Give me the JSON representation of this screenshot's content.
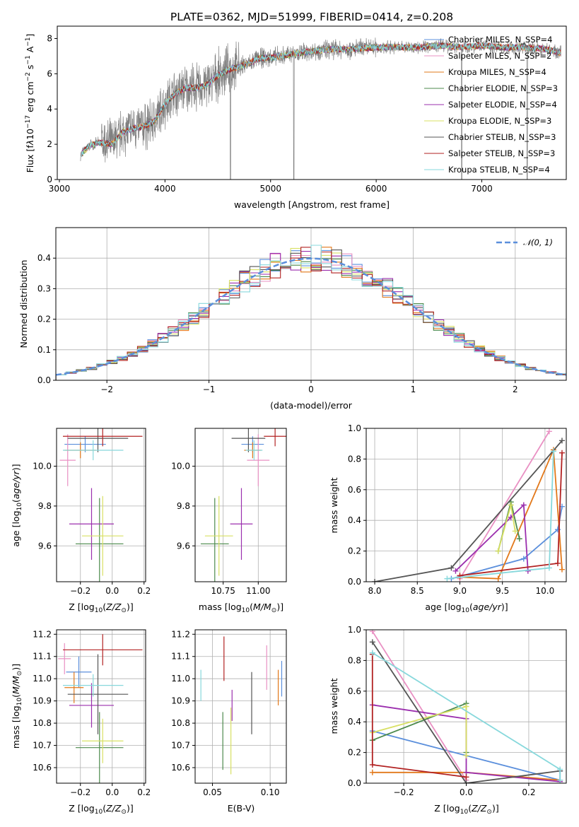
{
  "colors": {
    "chabrier_miles": "#5b8fdc",
    "salpeter_miles": "#e990c3",
    "kroupa_miles": "#e2781a",
    "chabrier_elodie": "#4c8a4c",
    "salpeter_elodie": "#9b2fae",
    "kroupa_elodie": "#d8e063",
    "chabrier_stelib": "#555555",
    "salpeter_stelib": "#b22222",
    "kroupa_stelib": "#87d8dc",
    "data": "#808080",
    "grid": "#b0b0b0"
  },
  "chart_data": [
    {
      "id": "spectrum",
      "type": "line",
      "title": "PLATE=0362, MJD=51999, FIBERID=0414, z=0.208",
      "xlabel": "wavelength [Angstrom, rest frame]",
      "ylabel": "Flux [f_λ10^-17 erg cm^-2 s^-1 A^-1]",
      "xlim": [
        2980,
        7800
      ],
      "ylim": [
        0,
        8.7
      ],
      "xticks": [
        3000,
        4000,
        5000,
        6000,
        7000
      ],
      "yticks": [
        0,
        2,
        4,
        6,
        8
      ],
      "legend_position": "right",
      "legend": [
        {
          "label": "Chabrier MILES, N_SSP=4",
          "key": "chabrier_miles"
        },
        {
          "label": "Salpeter MILES, N_SSP=2",
          "key": "salpeter_miles"
        },
        {
          "label": "Kroupa MILES, N_SSP=4",
          "key": "kroupa_miles"
        },
        {
          "label": "Chabrier ELODIE, N_SSP=3",
          "key": "chabrier_elodie"
        },
        {
          "label": "Salpeter ELODIE, N_SSP=4",
          "key": "salpeter_elodie"
        },
        {
          "label": "Kroupa ELODIE, N_SSP=3",
          "key": "kroupa_elodie"
        },
        {
          "label": "Chabrier STELIB, N_SSP=3",
          "key": "chabrier_stelib"
        },
        {
          "label": "Salpeter STELIB, N_SSP=3",
          "key": "salpeter_stelib"
        },
        {
          "label": "Kroupa STELIB, N_SSP=4",
          "key": "kroupa_stelib"
        }
      ],
      "continuum": {
        "x": [
          3200,
          3300,
          3400,
          3500,
          3600,
          3700,
          3800,
          3900,
          4000,
          4100,
          4200,
          4300,
          4400,
          4500,
          4600,
          4700,
          4800,
          4900,
          5000,
          5200,
          5400,
          5600,
          5800,
          6000,
          6200,
          6400,
          6600,
          6800,
          7000,
          7200,
          7400,
          7600,
          7750
        ],
        "y": [
          1.4,
          2.0,
          2.1,
          2.0,
          2.7,
          2.9,
          3.0,
          3.3,
          4.3,
          4.9,
          5.2,
          5.2,
          5.4,
          5.9,
          6.2,
          6.4,
          6.6,
          6.9,
          6.9,
          7.1,
          7.3,
          7.4,
          7.4,
          7.5,
          7.5,
          7.5,
          7.6,
          7.5,
          7.6,
          7.5,
          7.5,
          7.4,
          7.2
        ]
      }
    },
    {
      "id": "residuals",
      "type": "bar",
      "xlabel": "(data-model)/error",
      "ylabel": "Normed distribution",
      "xlim": [
        -2.5,
        2.5
      ],
      "ylim": [
        0,
        0.5
      ],
      "xticks": [
        -2,
        -1,
        0,
        1,
        2
      ],
      "yticks": [
        0.0,
        0.1,
        0.2,
        0.3,
        0.4
      ],
      "legend_position": "top-right",
      "legend": [
        {
          "label": "N(0,1)",
          "style": "dashed",
          "key": "chabrier_miles"
        }
      ],
      "bin_edges_start": -2.5,
      "bin_width": 0.1
    },
    {
      "id": "age-vs-Z",
      "type": "scatter",
      "xlabel": "Z [log10(Z/Z⊙)]",
      "ylabel": "age [log10(age/yr)]",
      "xlim": [
        -0.35,
        0.21
      ],
      "ylim": [
        9.42,
        10.19
      ],
      "xticks": [
        -0.2,
        0.0,
        0.2
      ],
      "yticks": [
        9.6,
        9.8,
        10.0
      ],
      "points": [
        {
          "key": "chabrier_miles",
          "x": -0.17,
          "xerr": 0.13,
          "y": 10.11,
          "yerr": 0.04
        },
        {
          "key": "salpeter_miles",
          "x": -0.28,
          "xerr": 0.05,
          "y": 10.03,
          "yerr": 0.13
        },
        {
          "key": "kroupa_miles",
          "x": -0.2,
          "xerr": 0.1,
          "y": 10.08,
          "yerr": 0.04
        },
        {
          "key": "chabrier_elodie",
          "x": -0.08,
          "xerr": 0.15,
          "y": 9.61,
          "yerr": 0.23
        },
        {
          "key": "salpeter_elodie",
          "x": -0.13,
          "xerr": 0.14,
          "y": 9.71,
          "yerr": 0.18
        },
        {
          "key": "kroupa_elodie",
          "x": -0.06,
          "xerr": 0.13,
          "y": 9.65,
          "yerr": 0.2
        },
        {
          "key": "chabrier_stelib",
          "x": -0.09,
          "xerr": 0.19,
          "y": 10.14,
          "yerr": 0.07
        },
        {
          "key": "salpeter_stelib",
          "x": -0.06,
          "xerr": 0.25,
          "y": 10.15,
          "yerr": 0.05
        },
        {
          "key": "kroupa_stelib",
          "x": -0.12,
          "xerr": 0.19,
          "y": 10.08,
          "yerr": 0.05
        }
      ]
    },
    {
      "id": "age-vs-mass",
      "type": "scatter",
      "xlabel": "mass [log10(M/M⊙)]",
      "ylabel": "",
      "xlim": [
        10.55,
        11.2
      ],
      "ylim": [
        9.42,
        10.19
      ],
      "xticks": [
        10.75,
        11.0
      ],
      "yticks": [
        9.6,
        9.8,
        10.0
      ],
      "points": [
        {
          "key": "chabrier_miles",
          "x": 10.96,
          "xerr": 0.08,
          "y": 10.11,
          "yerr": 0.04
        },
        {
          "key": "salpeter_miles",
          "x": 11.0,
          "xerr": 0.08,
          "y": 10.03,
          "yerr": 0.13
        },
        {
          "key": "kroupa_miles",
          "x": 10.96,
          "xerr": 0.06,
          "y": 10.08,
          "yerr": 0.04
        },
        {
          "key": "chabrier_elodie",
          "x": 10.69,
          "xerr": 0.1,
          "y": 9.61,
          "yerr": 0.23
        },
        {
          "key": "salpeter_elodie",
          "x": 10.88,
          "xerr": 0.08,
          "y": 9.71,
          "yerr": 0.18
        },
        {
          "key": "kroupa_elodie",
          "x": 10.72,
          "xerr": 0.1,
          "y": 9.65,
          "yerr": 0.2
        },
        {
          "key": "chabrier_stelib",
          "x": 10.93,
          "xerr": 0.12,
          "y": 10.14,
          "yerr": 0.07
        },
        {
          "key": "salpeter_stelib",
          "x": 11.12,
          "xerr": 0.08,
          "y": 10.15,
          "yerr": 0.05
        },
        {
          "key": "kroupa_stelib",
          "x": 10.97,
          "xerr": 0.06,
          "y": 10.08,
          "yerr": 0.05
        }
      ]
    },
    {
      "id": "mass-weight-vs-age",
      "type": "line",
      "xlabel": "age [log10(age/yr)]",
      "ylabel": "mass weight",
      "xlim": [
        7.9,
        10.25
      ],
      "ylim": [
        0,
        1
      ],
      "xticks": [
        8.0,
        8.5,
        9.0,
        9.5,
        10.0
      ],
      "yticks": [
        0.0,
        0.2,
        0.4,
        0.6,
        0.8,
        1.0
      ],
      "series": [
        {
          "key": "chabrier_miles",
          "x": [
            8.9,
            9.75,
            10.15,
            10.2
          ],
          "y": [
            0.02,
            0.15,
            0.34,
            0.49
          ]
        },
        {
          "key": "salpeter_miles",
          "x": [
            9.0,
            10.05
          ],
          "y": [
            0.02,
            0.98
          ]
        },
        {
          "key": "kroupa_miles",
          "x": [
            9.0,
            9.45,
            10.1,
            10.2
          ],
          "y": [
            0.03,
            0.02,
            0.86,
            0.08
          ]
        },
        {
          "key": "chabrier_elodie",
          "x": [
            9.45,
            9.6,
            9.7
          ],
          "y": [
            0.2,
            0.52,
            0.28
          ]
        },
        {
          "key": "salpeter_elodie",
          "x": [
            8.95,
            9.6,
            9.75,
            9.8
          ],
          "y": [
            0.07,
            0.42,
            0.5,
            0.07
          ]
        },
        {
          "key": "kroupa_elodie",
          "x": [
            9.45,
            9.6,
            9.65
          ],
          "y": [
            0.2,
            0.5,
            0.33
          ]
        },
        {
          "key": "chabrier_stelib",
          "x": [
            8.0,
            8.9,
            10.2
          ],
          "y": [
            0.0,
            0.09,
            0.92
          ]
        },
        {
          "key": "salpeter_stelib",
          "x": [
            9.0,
            10.15,
            10.2
          ],
          "y": [
            0.04,
            0.12,
            0.84
          ]
        },
        {
          "key": "kroupa_stelib",
          "x": [
            8.85,
            10.05,
            10.1
          ],
          "y": [
            0.02,
            0.09,
            0.85
          ]
        }
      ]
    },
    {
      "id": "mass-vs-Z",
      "type": "scatter",
      "xlabel": "Z [log10(Z/Z⊙)]",
      "ylabel": "mass [log10(M/M⊙)]",
      "xlim": [
        -0.35,
        0.21
      ],
      "ylim": [
        10.53,
        11.22
      ],
      "xticks": [
        -0.2,
        0.0,
        0.2
      ],
      "yticks": [
        10.6,
        10.7,
        10.8,
        10.9,
        11.0,
        11.1,
        11.2
      ],
      "points": [
        {
          "key": "chabrier_miles",
          "x": -0.21,
          "xerr": 0.08,
          "y": 11.03,
          "yerr": 0.07
        },
        {
          "key": "salpeter_miles",
          "x": -0.3,
          "xerr": 0.04,
          "y": 11.09,
          "yerr": 0.07
        },
        {
          "key": "kroupa_miles",
          "x": -0.24,
          "xerr": 0.06,
          "y": 10.96,
          "yerr": 0.07
        },
        {
          "key": "chabrier_elodie",
          "x": -0.08,
          "xerr": 0.15,
          "y": 10.69,
          "yerr": 0.16
        },
        {
          "key": "salpeter_elodie",
          "x": -0.13,
          "xerr": 0.14,
          "y": 10.88,
          "yerr": 0.1
        },
        {
          "key": "kroupa_elodie",
          "x": -0.06,
          "xerr": 0.13,
          "y": 10.72,
          "yerr": 0.1
        },
        {
          "key": "chabrier_stelib",
          "x": -0.09,
          "xerr": 0.19,
          "y": 10.93,
          "yerr": 0.18
        },
        {
          "key": "salpeter_stelib",
          "x": -0.06,
          "xerr": 0.25,
          "y": 11.13,
          "yerr": 0.07
        },
        {
          "key": "kroupa_stelib",
          "x": -0.12,
          "xerr": 0.19,
          "y": 10.97,
          "yerr": 0.05
        }
      ]
    },
    {
      "id": "mass-vs-EBV",
      "type": "scatter",
      "xlabel": "E(B-V)",
      "ylabel": "",
      "xlim": [
        0.035,
        0.114
      ],
      "ylim": [
        10.53,
        11.22
      ],
      "xticks": [
        0.05,
        0.1
      ],
      "yticks": [
        10.6,
        10.7,
        10.8,
        10.9,
        11.0,
        11.1,
        11.2
      ],
      "points": [
        {
          "key": "chabrier_miles",
          "x": 0.11,
          "y": 11.0,
          "yerr": 0.08
        },
        {
          "key": "salpeter_miles",
          "x": 0.097,
          "y": 11.05,
          "yerr": 0.1
        },
        {
          "key": "kroupa_miles",
          "x": 0.107,
          "y": 10.96,
          "yerr": 0.08
        },
        {
          "key": "chabrier_elodie",
          "x": 0.059,
          "y": 10.72,
          "yerr": 0.13
        },
        {
          "key": "salpeter_elodie",
          "x": 0.067,
          "y": 10.88,
          "yerr": 0.07
        },
        {
          "key": "kroupa_elodie",
          "x": 0.066,
          "y": 10.72,
          "yerr": 0.15
        },
        {
          "key": "chabrier_stelib",
          "x": 0.084,
          "y": 10.89,
          "yerr": 0.14
        },
        {
          "key": "salpeter_stelib",
          "x": 0.06,
          "y": 11.09,
          "yerr": 0.1
        },
        {
          "key": "kroupa_stelib",
          "x": 0.04,
          "y": 10.97,
          "yerr": 0.07
        }
      ]
    },
    {
      "id": "mass-weight-vs-Z",
      "type": "line",
      "xlabel": "Z [log10(Z/Z⊙)]",
      "ylabel": "mass weight",
      "xlim": [
        -0.32,
        0.32
      ],
      "ylim": [
        0,
        1
      ],
      "xticks": [
        -0.2,
        0.0,
        0.2
      ],
      "yticks": [
        0.0,
        0.2,
        0.4,
        0.6,
        0.8,
        1.0
      ],
      "series": [
        {
          "key": "chabrier_miles",
          "x": [
            -0.3,
            0.3,
            0.3
          ],
          "y": [
            0.34,
            0.02,
            0.08
          ]
        },
        {
          "key": "salpeter_miles",
          "x": [
            -0.3,
            0.0
          ],
          "y": [
            0.99,
            0.02
          ]
        },
        {
          "key": "kroupa_miles",
          "x": [
            -0.3,
            0.0,
            0.3
          ],
          "y": [
            0.07,
            0.07,
            0.02
          ]
        },
        {
          "key": "chabrier_elodie",
          "x": [
            -0.3,
            0.0,
            0.0
          ],
          "y": [
            0.28,
            0.52,
            0.2
          ]
        },
        {
          "key": "salpeter_elodie",
          "x": [
            -0.3,
            0.0,
            0.0,
            0.3
          ],
          "y": [
            0.51,
            0.42,
            0.07,
            0.01
          ]
        },
        {
          "key": "kroupa_elodie",
          "x": [
            -0.3,
            0.0,
            0.0
          ],
          "y": [
            0.33,
            0.5,
            0.18
          ]
        },
        {
          "key": "chabrier_stelib",
          "x": [
            -0.3,
            0.0,
            0.3
          ],
          "y": [
            0.92,
            0.0,
            0.08
          ]
        },
        {
          "key": "salpeter_stelib",
          "x": [
            -0.3,
            -0.3,
            0.0
          ],
          "y": [
            0.84,
            0.12,
            0.04
          ]
        },
        {
          "key": "kroupa_stelib",
          "x": [
            -0.3,
            0.3,
            0.3
          ],
          "y": [
            0.85,
            0.09,
            0.02
          ]
        }
      ]
    }
  ]
}
